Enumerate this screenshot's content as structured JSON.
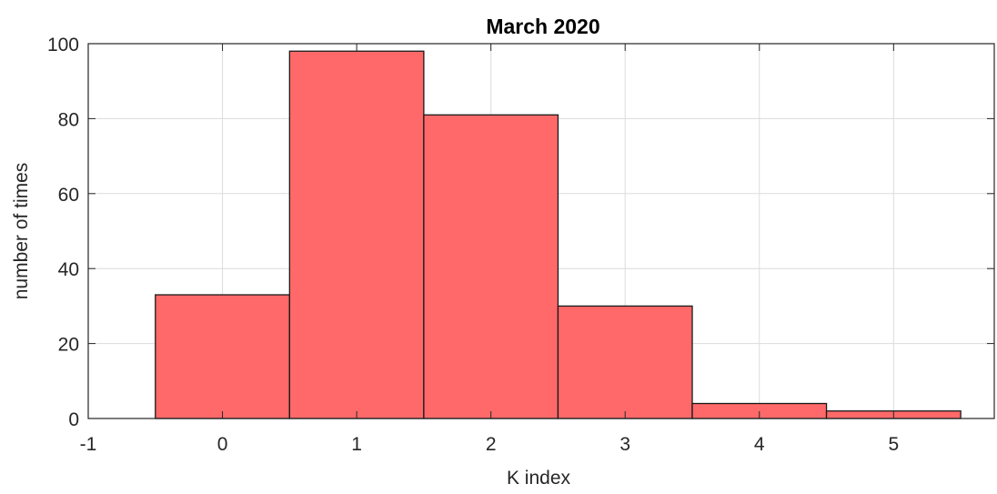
{
  "chart_data": {
    "type": "bar",
    "title": "March 2020",
    "xlabel": "K index",
    "ylabel": "number of times",
    "categories": [
      "0",
      "1",
      "2",
      "3",
      "4",
      "5"
    ],
    "x": [
      0,
      1,
      2,
      3,
      4,
      5
    ],
    "values": [
      33,
      98,
      81,
      30,
      4,
      2
    ],
    "bin_width": 1,
    "xlim": [
      -1,
      5.75
    ],
    "ylim": [
      0,
      100
    ],
    "xticks": [
      -1,
      0,
      1,
      2,
      3,
      4,
      5
    ],
    "yticks": [
      0,
      20,
      40,
      60,
      80,
      100
    ],
    "grid": true,
    "bar_color": "#ff6666",
    "edge_color": "#1a1a1a"
  }
}
